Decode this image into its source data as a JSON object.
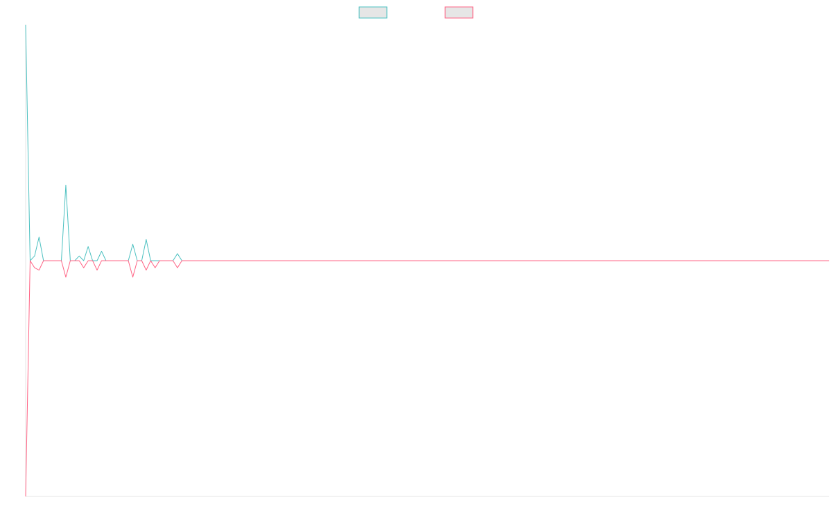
{
  "chart_data": {
    "type": "line",
    "title": "",
    "xlabel": "",
    "ylabel": "",
    "grid": false,
    "legend_position": "top-center",
    "ylim": [
      -100,
      100
    ],
    "x": [
      0,
      1,
      2,
      3,
      4,
      5,
      6,
      7,
      8,
      9,
      10,
      11,
      12,
      13,
      14,
      15,
      16,
      17,
      18,
      19,
      20,
      21,
      22,
      23,
      24,
      25,
      26,
      27,
      28,
      29,
      30,
      31,
      32,
      33,
      34,
      35,
      36,
      37,
      38,
      39,
      40,
      41,
      42,
      43,
      44,
      45,
      46,
      47,
      48,
      49,
      50,
      51,
      52,
      53,
      54,
      55,
      56,
      57,
      58,
      59,
      60,
      61,
      62,
      63,
      64,
      65,
      66,
      67,
      68,
      69,
      70,
      71,
      72,
      73,
      74,
      75,
      76,
      77,
      78,
      79,
      80,
      81,
      82,
      83,
      84,
      85,
      86,
      87,
      88,
      89,
      90,
      91,
      92,
      93,
      94,
      95,
      96,
      97,
      98,
      99,
      100,
      101,
      102,
      103,
      104,
      105,
      106,
      107,
      108,
      109,
      110,
      111,
      112,
      113,
      114,
      115,
      116,
      117,
      118,
      119,
      120,
      121,
      122,
      123,
      124,
      125,
      126,
      127,
      128,
      129,
      130,
      131,
      132,
      133,
      134,
      135,
      136,
      137,
      138,
      139,
      140,
      141,
      142,
      143,
      144,
      145,
      146,
      147,
      148,
      149,
      150,
      151,
      152,
      153,
      154,
      155,
      156,
      157,
      158,
      159,
      160,
      161,
      162,
      163,
      164,
      165,
      166,
      167,
      168,
      169,
      170,
      171,
      172,
      173,
      174,
      175,
      176,
      177,
      178,
      179,
      180
    ],
    "series": [
      {
        "name": "",
        "color": "#4bc0c0",
        "values": [
          100,
          0,
          2,
          10,
          0,
          0,
          0,
          0,
          0,
          32,
          0,
          0,
          2,
          0,
          6,
          0,
          0,
          4,
          0,
          0,
          0,
          0,
          0,
          0,
          7,
          0,
          0,
          9,
          0,
          0,
          0,
          0,
          0,
          0,
          3,
          0,
          0,
          0,
          0,
          0,
          0,
          0,
          0,
          0,
          0,
          0,
          0,
          0,
          0,
          0,
          0,
          0,
          0,
          0,
          0,
          0,
          0,
          0,
          0,
          0,
          0,
          0,
          0,
          0,
          0,
          0,
          0,
          0,
          0,
          0,
          0,
          0,
          0,
          0,
          0,
          0,
          0,
          0,
          0,
          0,
          0,
          0,
          0,
          0,
          0,
          0,
          0,
          0,
          0,
          0,
          0,
          0,
          0,
          0,
          0,
          0,
          0,
          0,
          0,
          0,
          0,
          0,
          0,
          0,
          0,
          0,
          0,
          0,
          0,
          0,
          0,
          0,
          0,
          0,
          0,
          0,
          0,
          0,
          0,
          0,
          0,
          0,
          0,
          0,
          0,
          0,
          0,
          0,
          0,
          0,
          0,
          0,
          0,
          0,
          0,
          0,
          0,
          0,
          0,
          0,
          0,
          0,
          0,
          0,
          0,
          0,
          0,
          0,
          0,
          0,
          0,
          0,
          0,
          0,
          0,
          0,
          0,
          0,
          0,
          0,
          0,
          0,
          0,
          0,
          0,
          0,
          0,
          0,
          0,
          0,
          0,
          0,
          0,
          0,
          0,
          0,
          0,
          0,
          0,
          0,
          0
        ]
      },
      {
        "name": "",
        "color": "#ff6384",
        "values": [
          -100,
          0,
          -3,
          -4,
          0,
          0,
          0,
          0,
          0,
          -7,
          0,
          0,
          0,
          -3,
          0,
          0,
          -4,
          0,
          0,
          0,
          0,
          0,
          0,
          0,
          -7,
          0,
          0,
          -4,
          0,
          -3,
          0,
          0,
          0,
          0,
          -3,
          0,
          0,
          0,
          0,
          0,
          0,
          0,
          0,
          0,
          0,
          0,
          0,
          0,
          0,
          0,
          0,
          0,
          0,
          0,
          0,
          0,
          0,
          0,
          0,
          0,
          0,
          0,
          0,
          0,
          0,
          0,
          0,
          0,
          0,
          0,
          0,
          0,
          0,
          0,
          0,
          0,
          0,
          0,
          0,
          0,
          0,
          0,
          0,
          0,
          0,
          0,
          0,
          0,
          0,
          0,
          0,
          0,
          0,
          0,
          0,
          0,
          0,
          0,
          0,
          0,
          0,
          0,
          0,
          0,
          0,
          0,
          0,
          0,
          0,
          0,
          0,
          0,
          0,
          0,
          0,
          0,
          0,
          0,
          0,
          0,
          0,
          0,
          0,
          0,
          0,
          0,
          0,
          0,
          0,
          0,
          0,
          0,
          0,
          0,
          0,
          0,
          0,
          0,
          0,
          0,
          0,
          0,
          0,
          0,
          0,
          0,
          0,
          0,
          0,
          0,
          0,
          0,
          0,
          0,
          0,
          0,
          0,
          0,
          0,
          0,
          0,
          0,
          0,
          0,
          0,
          0,
          0,
          0,
          0,
          0,
          0,
          0,
          0,
          0,
          0,
          0,
          0,
          0,
          0,
          0,
          0
        ]
      }
    ]
  }
}
